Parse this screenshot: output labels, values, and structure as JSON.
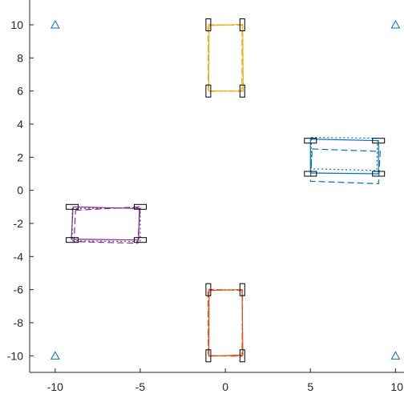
{
  "chart_data": {
    "type": "line",
    "title": "",
    "xlabel": "",
    "ylabel": "",
    "xlim": [
      -11.5,
      10.5
    ],
    "ylim": [
      -11,
      11.5
    ],
    "xticks": [
      -10,
      -5,
      0,
      5,
      10
    ],
    "xtick_labels": [
      "-10",
      "-5",
      "0",
      "5",
      "10"
    ],
    "yticks": [
      -10,
      -8,
      -6,
      -4,
      -2,
      0,
      2,
      4,
      6,
      8,
      10
    ],
    "ytick_labels": [
      "-10",
      "-8",
      "-6",
      "-4",
      "-2",
      "0",
      "2",
      "4",
      "6",
      "8",
      "10"
    ],
    "grid": false,
    "legend": "none",
    "anchors": {
      "marker": "triangle",
      "color": "#0072BD",
      "points": [
        [
          -10,
          10
        ],
        [
          10,
          10
        ],
        [
          -10,
          -10
        ],
        [
          10,
          -10
        ]
      ]
    },
    "series": [
      {
        "color": "#EDB120",
        "ref_rect": [
          [
            -1,
            10
          ],
          [
            1,
            10
          ],
          [
            1,
            6
          ],
          [
            -1,
            6
          ]
        ],
        "traces": [
          {
            "style": "solid",
            "points": [
              [
                -0.95,
                9.95
              ],
              [
                1.02,
                10.03
              ],
              [
                1.05,
                5.98
              ],
              [
                -0.98,
                6.02
              ]
            ]
          },
          {
            "style": "dashed",
            "points": [
              [
                -1.02,
                10.02
              ],
              [
                0.98,
                9.97
              ],
              [
                0.97,
                6.03
              ],
              [
                -1.01,
                5.96
              ]
            ]
          },
          {
            "style": "dotted",
            "points": [
              [
                -0.99,
                9.98
              ],
              [
                1.0,
                10.0
              ],
              [
                1.01,
                6.0
              ],
              [
                -1.0,
                6.0
              ]
            ]
          }
        ]
      },
      {
        "color": "#0072BD",
        "ref_rect": [
          [
            5,
            3
          ],
          [
            9,
            3
          ],
          [
            9,
            1
          ],
          [
            5,
            1
          ]
        ],
        "traces": [
          {
            "style": "solid",
            "points": [
              [
                5.0,
                3.1
              ],
              [
                9.0,
                3.0
              ],
              [
                9.0,
                1.0
              ],
              [
                5.0,
                1.05
              ]
            ]
          },
          {
            "style": "dashed",
            "points": [
              [
                5.1,
                2.5
              ],
              [
                9.1,
                2.35
              ],
              [
                9.0,
                0.4
              ],
              [
                5.0,
                0.55
              ]
            ]
          },
          {
            "style": "dotted",
            "points": [
              [
                5.05,
                3.2
              ],
              [
                8.95,
                3.15
              ],
              [
                8.9,
                1.2
              ],
              [
                5.05,
                1.3
              ]
            ]
          }
        ]
      },
      {
        "color": "#7E2F8E",
        "ref_rect": [
          [
            -9,
            -1
          ],
          [
            -5,
            -1
          ],
          [
            -5,
            -3
          ],
          [
            -9,
            -3
          ]
        ],
        "traces": [
          {
            "style": "solid",
            "points": [
              [
                -8.95,
                -1.0
              ],
              [
                -5.05,
                -1.1
              ],
              [
                -5.1,
                -3.0
              ],
              [
                -9.05,
                -2.95
              ]
            ]
          },
          {
            "style": "dashed",
            "points": [
              [
                -8.8,
                -1.2
              ],
              [
                -5.0,
                -1.0
              ],
              [
                -5.15,
                -3.2
              ],
              [
                -8.9,
                -3.1
              ]
            ]
          },
          {
            "style": "dotted",
            "points": [
              [
                -9.0,
                -1.1
              ],
              [
                -5.0,
                -1.05
              ],
              [
                -5.0,
                -3.1
              ],
              [
                -9.0,
                -3.05
              ]
            ]
          }
        ]
      },
      {
        "color": "#D95319",
        "ref_rect": [
          [
            -1,
            -6
          ],
          [
            1,
            -6
          ],
          [
            1,
            -10
          ],
          [
            -1,
            -10
          ]
        ],
        "traces": [
          {
            "style": "solid",
            "points": [
              [
                -0.95,
                -6.05
              ],
              [
                0.98,
                -6.0
              ],
              [
                1.03,
                -9.95
              ],
              [
                -0.97,
                -10.02
              ]
            ]
          },
          {
            "style": "dashed",
            "points": [
              [
                -1.02,
                -5.98
              ],
              [
                1.01,
                -6.05
              ],
              [
                0.98,
                -10.03
              ],
              [
                -1.0,
                -9.98
              ]
            ]
          },
          {
            "style": "dotted",
            "points": [
              [
                -1.0,
                -6.0
              ],
              [
                1.0,
                -6.0
              ],
              [
                1.0,
                -10.0
              ],
              [
                -1.0,
                -10.0
              ]
            ]
          }
        ]
      }
    ]
  }
}
